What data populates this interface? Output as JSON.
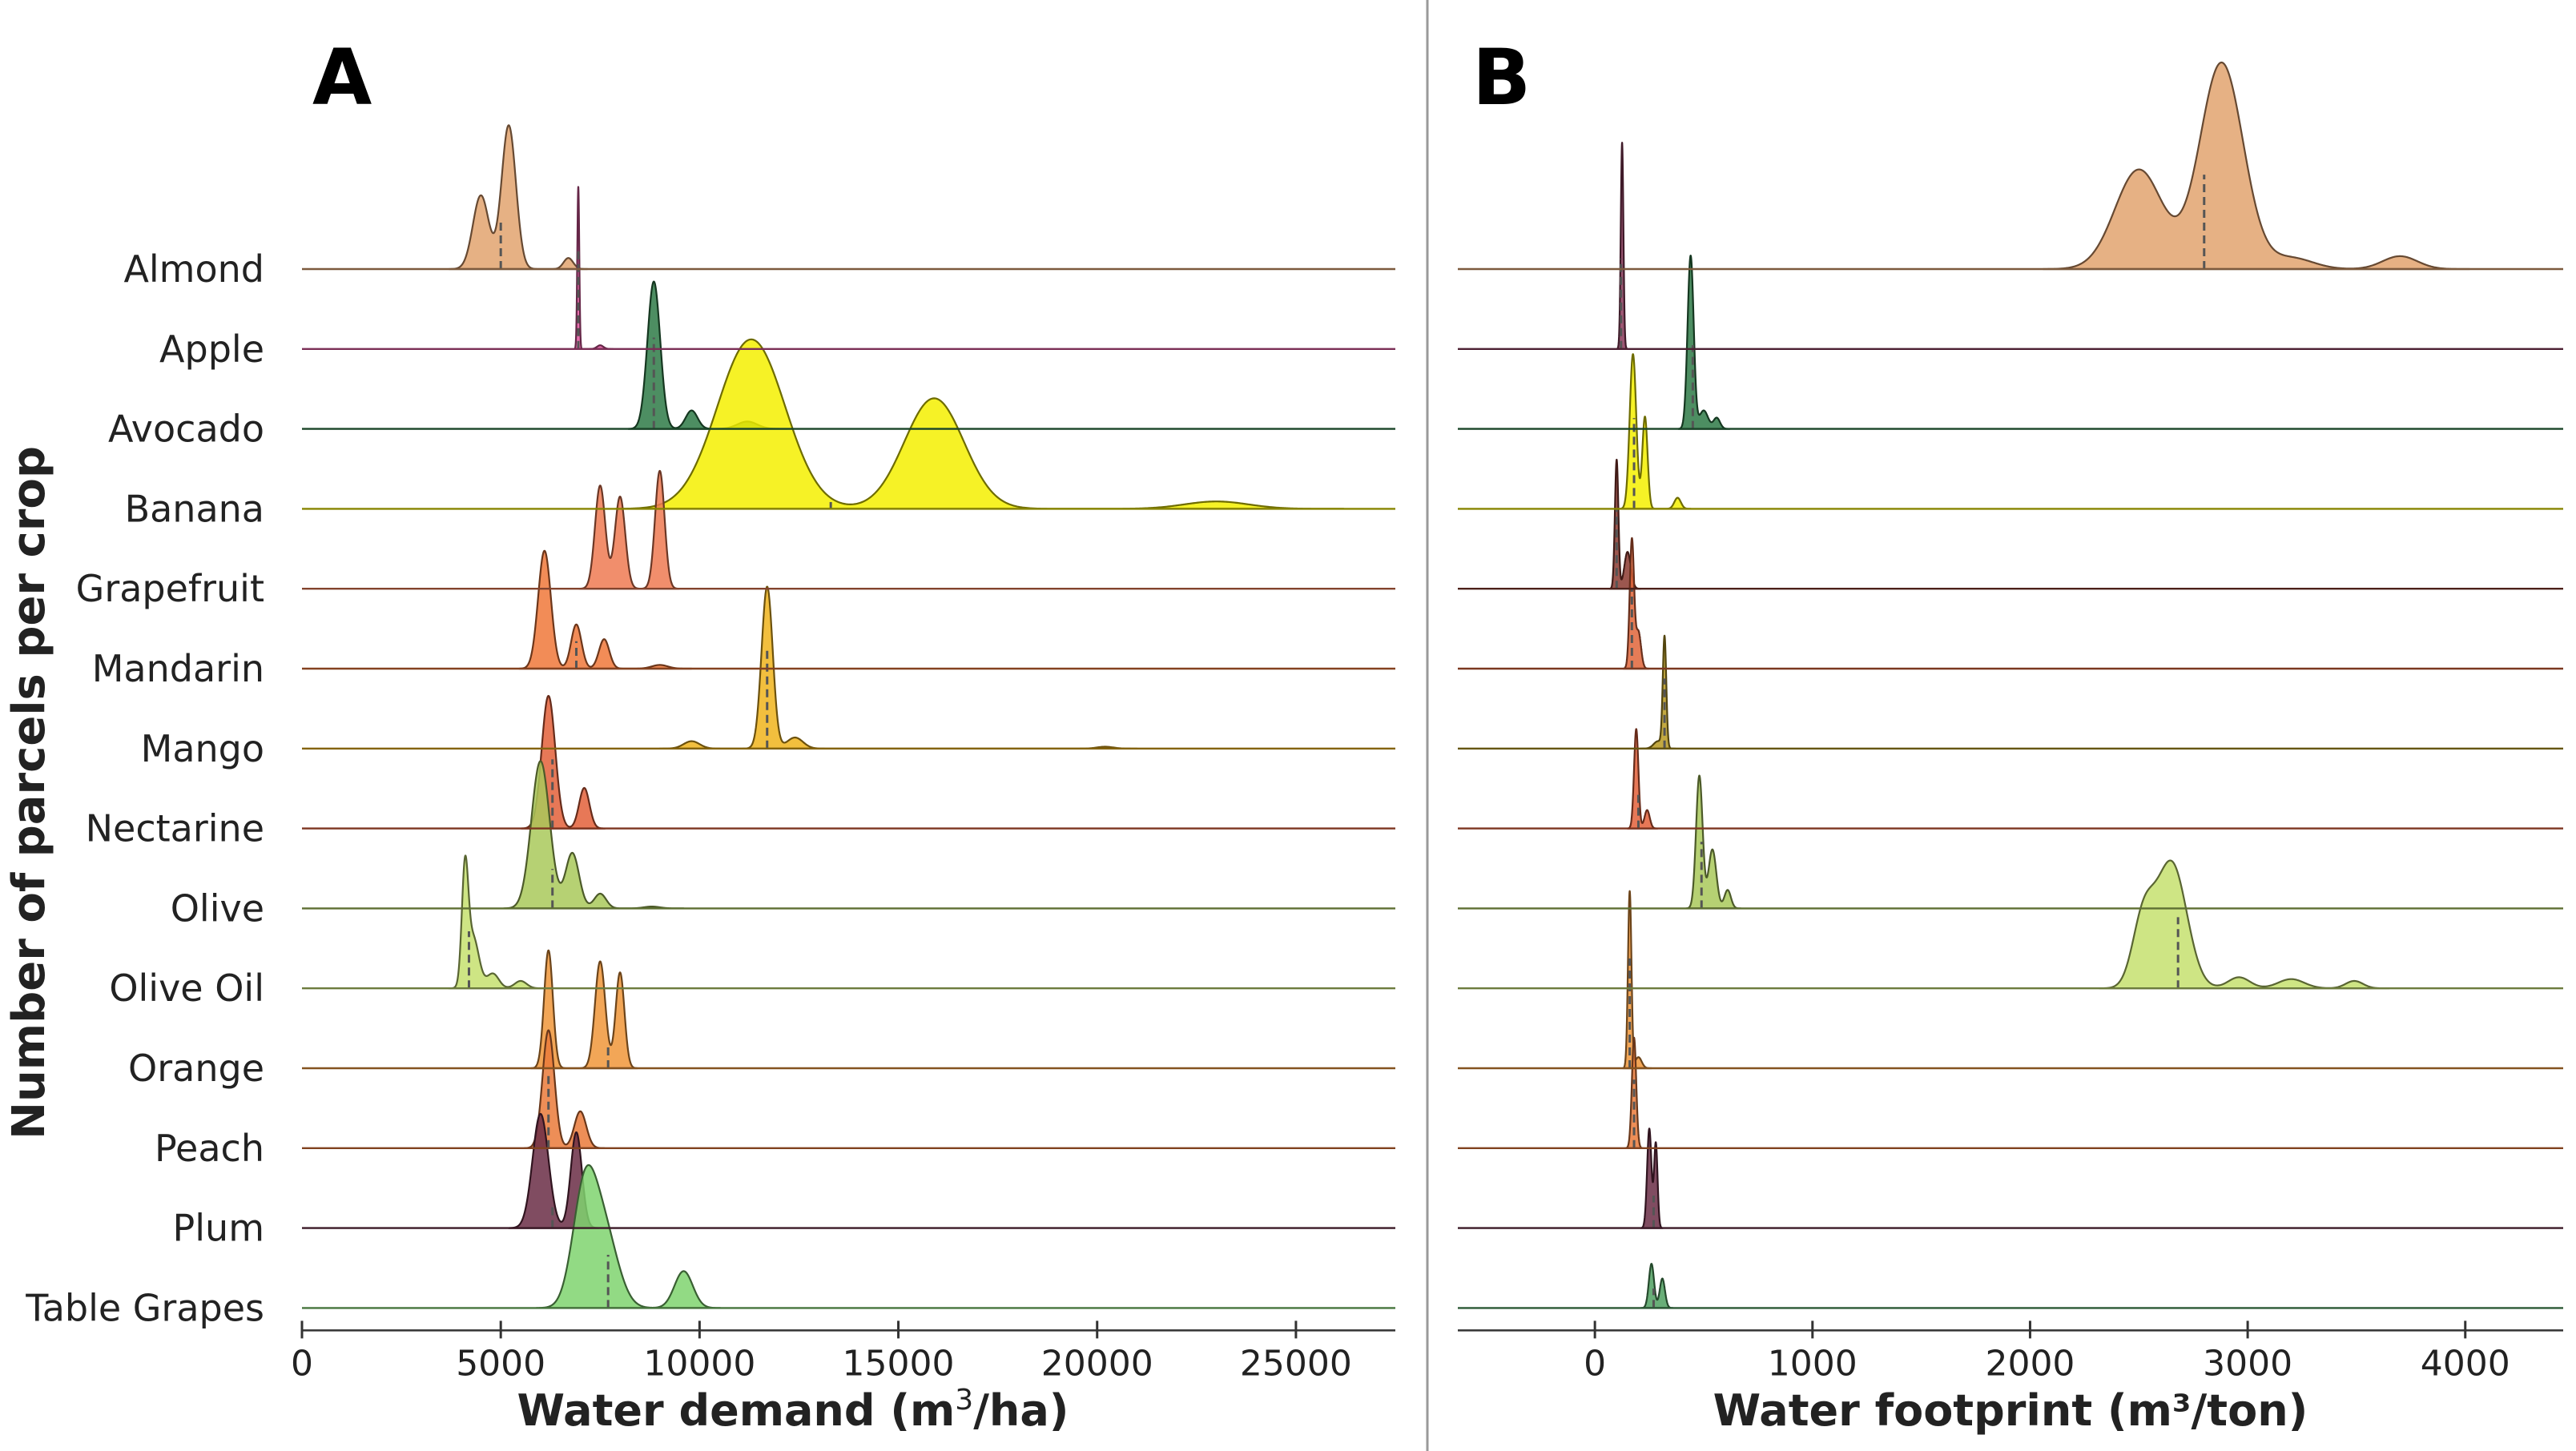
{
  "chart_data": [
    {
      "panel_label": "A",
      "type": "ridgeline",
      "xlabel_main": "Water demand (m",
      "xlabel_sup": "3",
      "xlabel_tail": "/ha)",
      "ylabel": "Number of parcels per crop",
      "xlim": [
        0,
        27500
      ],
      "xticks": [
        "0",
        "5000",
        "10000",
        "15000",
        "20000",
        "25000"
      ],
      "xtick_values": [
        0,
        5000,
        10000,
        15000,
        20000,
        25000
      ],
      "grid": false,
      "legend": "none",
      "series": [
        {
          "name": "Almond",
          "color": "#e2a36f",
          "median": 5000,
          "peaks": [
            [
              4500,
              2.0,
              200
            ],
            [
              5200,
              3.9,
              180
            ],
            [
              6700,
              0.3,
              120
            ]
          ]
        },
        {
          "name": "Apple",
          "color": "#e0559d",
          "median": 6950,
          "peaks": [
            [
              6950,
              4.4,
              25
            ],
            [
              7500,
              0.1,
              80
            ]
          ]
        },
        {
          "name": "Avocado",
          "color": "#2e7a46",
          "median": 8850,
          "peaks": [
            [
              8850,
              4.0,
              160
            ],
            [
              9800,
              0.5,
              150
            ],
            [
              11200,
              0.2,
              250
            ]
          ]
        },
        {
          "name": "Banana",
          "color": "#f5f000",
          "median": 13300,
          "peaks": [
            [
              11300,
              4.6,
              850
            ],
            [
              15900,
              3.0,
              750
            ],
            [
              23000,
              0.2,
              800
            ]
          ]
        },
        {
          "name": "Grapefruit",
          "color": "#ee7a52",
          "median": 8600,
          "peaks": [
            [
              7500,
              2.8,
              130
            ],
            [
              8000,
              2.5,
              130
            ],
            [
              9000,
              3.2,
              120
            ]
          ]
        },
        {
          "name": "Mandarin",
          "color": "#f0783a",
          "median": 6900,
          "peaks": [
            [
              6100,
              3.2,
              160
            ],
            [
              6900,
              1.2,
              130
            ],
            [
              7600,
              0.8,
              130
            ],
            [
              9000,
              0.1,
              200
            ]
          ]
        },
        {
          "name": "Mango",
          "color": "#f0b41c",
          "median": 11700,
          "peaks": [
            [
              11700,
              4.4,
              140
            ],
            [
              9800,
              0.2,
              200
            ],
            [
              12400,
              0.3,
              200
            ],
            [
              20200,
              0.05,
              200
            ]
          ]
        },
        {
          "name": "Nectarine",
          "color": "#e3603a",
          "median": 6300,
          "peaks": [
            [
              6200,
              3.6,
              170
            ],
            [
              7100,
              1.1,
              130
            ]
          ]
        },
        {
          "name": "Olive",
          "color": "#a9c95a",
          "median": 6300,
          "peaks": [
            [
              6000,
              4.0,
              230
            ],
            [
              6800,
              1.5,
              170
            ],
            [
              7500,
              0.4,
              150
            ],
            [
              8800,
              0.05,
              200
            ]
          ]
        },
        {
          "name": "Olive Oil",
          "color": "#c5e06e",
          "median": 4200,
          "peaks": [
            [
              4100,
              3.0,
              80
            ],
            [
              4300,
              1.4,
              150
            ],
            [
              4800,
              0.4,
              150
            ],
            [
              5500,
              0.2,
              150
            ]
          ]
        },
        {
          "name": "Orange",
          "color": "#f0963a",
          "median": 7700,
          "peaks": [
            [
              6200,
              3.2,
              110
            ],
            [
              7500,
              2.9,
              130
            ],
            [
              8000,
              2.6,
              110
            ]
          ]
        },
        {
          "name": "Peach",
          "color": "#ea7a3a",
          "median": 6200,
          "peaks": [
            [
              6200,
              3.2,
              150
            ],
            [
              7000,
              1.0,
              150
            ]
          ]
        },
        {
          "name": "Plum",
          "color": "#6a2d45",
          "median": 6300,
          "peaks": [
            [
              6000,
              3.1,
              200
            ],
            [
              6900,
              2.6,
              140
            ]
          ]
        },
        {
          "name": "Table Grapes",
          "color": "#7fd46e",
          "median": 7700,
          "peaks": [
            [
              7100,
              3.0,
              300
            ],
            [
              7600,
              2.0,
              350
            ],
            [
              9600,
              1.0,
              230
            ]
          ]
        }
      ]
    },
    {
      "panel_label": "B",
      "type": "ridgeline",
      "xlabel": "Water footprint (m³/ton)",
      "xlim": [
        -630,
        4450
      ],
      "xticks": [
        "0",
        "1000",
        "2000",
        "3000",
        "4000"
      ],
      "xtick_values": [
        0,
        1000,
        2000,
        3000,
        4000
      ],
      "grid": false,
      "legend": "none",
      "series": [
        {
          "name": "Almond",
          "color": "#e2a36f",
          "median": 2800,
          "peaks": [
            [
              2500,
              2.7,
              110
            ],
            [
              2880,
              5.6,
              100
            ],
            [
              3200,
              0.3,
              100
            ],
            [
              3700,
              0.35,
              80
            ]
          ]
        },
        {
          "name": "Apple",
          "color": "#8b3a5a",
          "median": 120,
          "peaks": [
            [
              125,
              5.6,
              6
            ]
          ]
        },
        {
          "name": "Avocado",
          "color": "#2e7a46",
          "median": 450,
          "peaks": [
            [
              440,
              4.7,
              14
            ],
            [
              500,
              0.5,
              20
            ],
            [
              560,
              0.3,
              15
            ]
          ]
        },
        {
          "name": "Banana",
          "color": "#f5f000",
          "median": 180,
          "peaks": [
            [
              175,
              4.2,
              15
            ],
            [
              230,
              2.5,
              12
            ],
            [
              380,
              0.3,
              15
            ]
          ]
        },
        {
          "name": "Grapefruit",
          "color": "#8b3a30",
          "median": 100,
          "peaks": [
            [
              100,
              3.5,
              8
            ],
            [
              150,
              1.0,
              15
            ]
          ]
        },
        {
          "name": "Mandarin",
          "color": "#e0653a",
          "median": 170,
          "peaks": [
            [
              170,
              3.5,
              10
            ],
            [
              200,
              1.0,
              12
            ]
          ]
        },
        {
          "name": "Mango",
          "color": "#b89a20",
          "median": 320,
          "peaks": [
            [
              320,
              3.0,
              8
            ],
            [
              290,
              0.2,
              20
            ]
          ]
        },
        {
          "name": "Nectarine",
          "color": "#e3603a",
          "median": 200,
          "peaks": [
            [
              190,
              2.7,
              10
            ],
            [
              240,
              0.5,
              12
            ]
          ]
        },
        {
          "name": "Olive",
          "color": "#a9c95a",
          "median": 490,
          "peaks": [
            [
              480,
              3.6,
              15
            ],
            [
              540,
              1.6,
              18
            ],
            [
              610,
              0.5,
              15
            ]
          ]
        },
        {
          "name": "Olive Oil",
          "color": "#c5e06e",
          "median": 2680,
          "peaks": [
            [
              2650,
              3.4,
              70
            ],
            [
              2520,
              1.8,
              50
            ],
            [
              2960,
              0.3,
              50
            ],
            [
              3200,
              0.25,
              60
            ],
            [
              3490,
              0.2,
              40
            ]
          ]
        },
        {
          "name": "Orange",
          "color": "#f0963a",
          "median": 160,
          "peaks": [
            [
              160,
              4.8,
              8
            ],
            [
              200,
              0.3,
              15
            ]
          ]
        },
        {
          "name": "Peach",
          "color": "#ea7a3a",
          "median": 180,
          "peaks": [
            [
              180,
              3.0,
              10
            ]
          ]
        },
        {
          "name": "Plum",
          "color": "#6a2d45",
          "median": 270,
          "peaks": [
            [
              250,
              2.7,
              10
            ],
            [
              280,
              2.3,
              8
            ]
          ]
        },
        {
          "name": "Table Grapes",
          "color": "#4fa060",
          "median": 270,
          "peaks": [
            [
              260,
              1.2,
              12
            ],
            [
              310,
              0.8,
              12
            ]
          ]
        }
      ]
    }
  ]
}
